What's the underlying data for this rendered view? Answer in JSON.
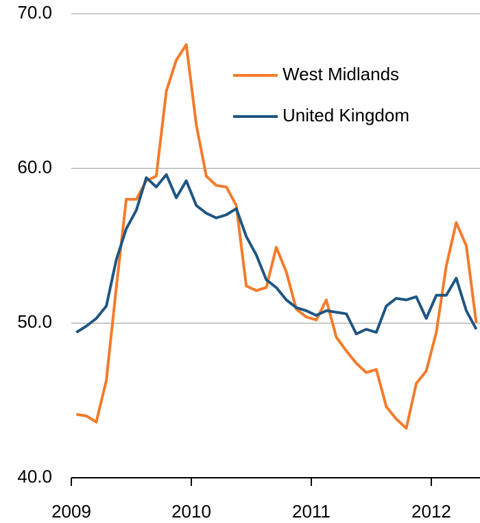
{
  "chart_data": {
    "type": "line",
    "x": [
      2009.042,
      2009.125,
      2009.208,
      2009.292,
      2009.375,
      2009.458,
      2009.542,
      2009.625,
      2009.708,
      2009.792,
      2009.875,
      2009.958,
      2010.042,
      2010.125,
      2010.208,
      2010.292,
      2010.375,
      2010.458,
      2010.542,
      2010.625,
      2010.708,
      2010.792,
      2010.875,
      2010.958,
      2011.042,
      2011.125,
      2011.208,
      2011.292,
      2011.375,
      2011.458,
      2011.542,
      2011.625,
      2011.708,
      2011.792,
      2011.875,
      2011.958,
      2012.042,
      2012.125,
      2012.208,
      2012.292,
      2012.375
    ],
    "series": [
      {
        "name": "West Midlands",
        "color": "#f47b2a",
        "values": [
          44.1,
          44.0,
          43.6,
          46.3,
          52.3,
          58.0,
          58.0,
          59.2,
          59.5,
          65.0,
          67.0,
          68.0,
          62.8,
          59.5,
          58.9,
          58.8,
          57.6,
          52.4,
          52.1,
          52.3,
          54.9,
          53.3,
          50.9,
          50.4,
          50.2,
          51.5,
          49.1,
          48.2,
          47.4,
          46.8,
          47.0,
          44.6,
          43.8,
          43.2,
          46.1,
          46.9,
          49.4,
          53.7,
          56.5,
          55.0,
          50.0
        ]
      },
      {
        "name": "United Kingdom",
        "color": "#1f5582",
        "values": [
          49.4,
          49.8,
          50.3,
          51.1,
          54.1,
          56.1,
          57.3,
          59.4,
          58.8,
          59.6,
          58.1,
          59.2,
          57.6,
          57.1,
          56.8,
          57.0,
          57.4,
          55.6,
          54.4,
          52.8,
          52.3,
          51.5,
          51.0,
          50.8,
          50.5,
          50.8,
          50.7,
          50.6,
          49.3,
          49.6,
          49.4,
          51.1,
          51.6,
          51.5,
          51.7,
          50.3,
          51.8,
          51.8,
          52.9,
          50.8,
          49.6
        ]
      }
    ],
    "xlim": [
      2009,
      2012.406
    ],
    "xticks": [
      2009,
      2010,
      2011,
      2012
    ],
    "ylim": [
      40,
      70
    ],
    "yticks": [
      {
        "value": 40,
        "label": "40.0"
      },
      {
        "value": 50,
        "label": "50.0"
      },
      {
        "value": 60,
        "label": "60.0"
      },
      {
        "value": 70,
        "label": "70.0"
      }
    ],
    "grid": true,
    "legend": "upper right"
  }
}
